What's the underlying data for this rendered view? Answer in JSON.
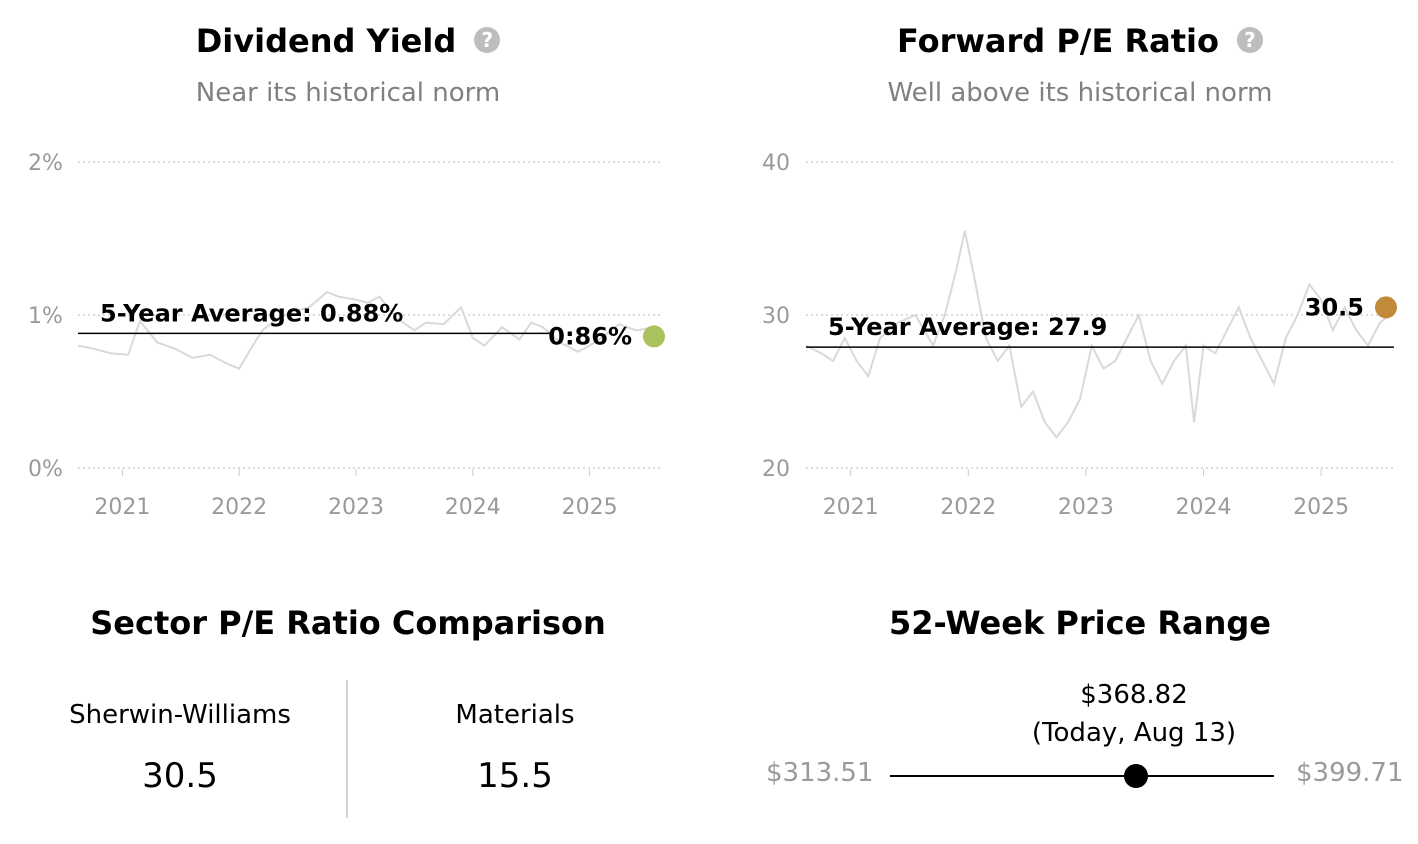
{
  "chart_data": [
    {
      "type": "line",
      "title": "Dividend Yield",
      "subtitle": "Near its historical norm",
      "y_ticks": [
        "2%",
        "1%",
        "0%"
      ],
      "ylim": [
        0,
        2
      ],
      "x_ticks": [
        "2021",
        "2022",
        "2023",
        "2024",
        "2025"
      ],
      "x_range": [
        2020.62,
        2025.62
      ],
      "average": {
        "label": "5-Year Average: 0.88%",
        "value": 0.88
      },
      "current": {
        "label": "0:86%",
        "value": 0.86,
        "color": "#a9c25d"
      },
      "series": [
        {
          "x": [
            2020.62,
            2020.75,
            2020.9,
            2021.05,
            2021.15,
            2021.3,
            2021.45,
            2021.6,
            2021.75,
            2021.9,
            2022.0,
            2022.1,
            2022.2,
            2022.3,
            2022.45,
            2022.6,
            2022.75,
            2022.85,
            2023.0,
            2023.1,
            2023.2,
            2023.35,
            2023.5,
            2023.6,
            2023.75,
            2023.9,
            2024.0,
            2024.1,
            2024.25,
            2024.4,
            2024.5,
            2024.6,
            2024.75,
            2024.9,
            2025.0,
            2025.1,
            2025.25,
            2025.4,
            2025.55
          ],
          "y": [
            0.8,
            0.78,
            0.75,
            0.74,
            0.96,
            0.82,
            0.78,
            0.72,
            0.74,
            0.68,
            0.65,
            0.78,
            0.9,
            0.96,
            1.02,
            1.05,
            1.15,
            1.12,
            1.1,
            1.08,
            1.12,
            0.98,
            0.9,
            0.95,
            0.94,
            1.05,
            0.85,
            0.8,
            0.92,
            0.84,
            0.95,
            0.92,
            0.82,
            0.76,
            0.8,
            0.85,
            0.94,
            0.9,
            0.92
          ]
        }
      ]
    },
    {
      "type": "line",
      "title": "Forward P/E Ratio",
      "subtitle": "Well above its historical norm",
      "y_ticks": [
        "40",
        "30",
        "20"
      ],
      "ylim": [
        20,
        40
      ],
      "x_ticks": [
        "2021",
        "2022",
        "2023",
        "2024",
        "2025"
      ],
      "x_range": [
        2020.62,
        2025.62
      ],
      "average": {
        "label": "5-Year Average: 27.9",
        "value": 27.9
      },
      "current": {
        "label": "30.5",
        "value": 30.5,
        "color": "#c08a3a"
      },
      "series": [
        {
          "x": [
            2020.62,
            2020.75,
            2020.85,
            2020.95,
            2021.05,
            2021.15,
            2021.25,
            2021.4,
            2021.55,
            2021.7,
            2021.8,
            2021.9,
            2021.97,
            2022.05,
            2022.15,
            2022.25,
            2022.35,
            2022.45,
            2022.55,
            2022.65,
            2022.75,
            2022.85,
            2022.95,
            2023.05,
            2023.15,
            2023.25,
            2023.35,
            2023.45,
            2023.55,
            2023.65,
            2023.75,
            2023.85,
            2023.92,
            2024.0,
            2024.1,
            2024.2,
            2024.3,
            2024.4,
            2024.5,
            2024.6,
            2024.7,
            2024.8,
            2024.9,
            2025.0,
            2025.1,
            2025.2,
            2025.3,
            2025.4,
            2025.5,
            2025.58
          ],
          "y": [
            28,
            27.5,
            27,
            28.5,
            27,
            26,
            28.5,
            29.5,
            30,
            28,
            30,
            33,
            35.5,
            32.5,
            28.5,
            27,
            28,
            24,
            25,
            23,
            22,
            23,
            24.5,
            28,
            26.5,
            27,
            28.5,
            30,
            27,
            25.5,
            27,
            28,
            23,
            28,
            27.5,
            29,
            30.5,
            28.5,
            27,
            25.5,
            28.5,
            30,
            32,
            31,
            29,
            30.5,
            29,
            28,
            29.5,
            30
          ]
        }
      ]
    }
  ],
  "sector_comparison": {
    "title": "Sector P/E Ratio Comparison",
    "items": [
      {
        "label": "Sherwin-Williams",
        "value": "30.5"
      },
      {
        "label": "Materials",
        "value": "15.5"
      }
    ]
  },
  "price_range": {
    "title": "52-Week Price Range",
    "low": "$313.51",
    "high": "$399.71",
    "current_price": "$368.82",
    "current_label": "(Today, Aug 13)",
    "low_value": 313.51,
    "high_value": 399.71,
    "current_value": 368.82
  },
  "icons": {
    "help": "help-icon"
  }
}
